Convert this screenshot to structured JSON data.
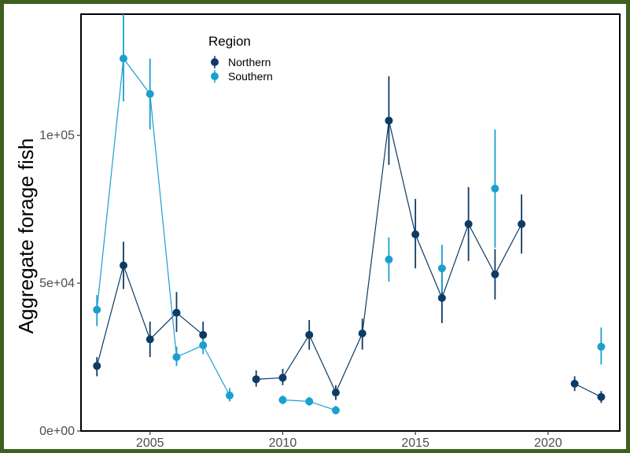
{
  "chart_data": {
    "type": "line",
    "title": "",
    "xlabel": "",
    "ylabel": "Aggregate forage fish",
    "xlim": [
      2002.4,
      2022.7
    ],
    "ylim": [
      0,
      141000
    ],
    "x_ticks": [
      2005,
      2010,
      2015,
      2020
    ],
    "x_tick_labels": [
      "2005",
      "2010",
      "2015",
      "2020"
    ],
    "y_ticks": [
      0,
      50000,
      100000
    ],
    "y_tick_labels": [
      "0e+00",
      "5e+04",
      "1e+05"
    ],
    "grid": false,
    "legend": {
      "title": "Region",
      "position": "top-left"
    },
    "series": [
      {
        "name": "Northern",
        "color": "#0d3b66",
        "points": [
          {
            "x": 2003,
            "y": 22000,
            "lo": 18500,
            "hi": 25000
          },
          {
            "x": 2004,
            "y": 56000,
            "lo": 48000,
            "hi": 64000
          },
          {
            "x": 2005,
            "y": 31000,
            "lo": 25000,
            "hi": 37000
          },
          {
            "x": 2006,
            "y": 40000,
            "lo": 33500,
            "hi": 47000
          },
          {
            "x": 2007,
            "y": 32500,
            "lo": 28500,
            "hi": 37000
          },
          {
            "x": 2009,
            "y": 17500,
            "lo": 15000,
            "hi": 20500
          },
          {
            "x": 2010,
            "y": 18000,
            "lo": 15500,
            "hi": 21000
          },
          {
            "x": 2011,
            "y": 32500,
            "lo": 27500,
            "hi": 37500
          },
          {
            "x": 2012,
            "y": 13000,
            "lo": 10500,
            "hi": 15500
          },
          {
            "x": 2013,
            "y": 33000,
            "lo": 27500,
            "hi": 38000
          },
          {
            "x": 2014,
            "y": 105000,
            "lo": 90000,
            "hi": 120000
          },
          {
            "x": 2015,
            "y": 66500,
            "lo": 55000,
            "hi": 78500
          },
          {
            "x": 2016,
            "y": 45000,
            "lo": 36500,
            "hi": 54000
          },
          {
            "x": 2017,
            "y": 70000,
            "lo": 57500,
            "hi": 82500
          },
          {
            "x": 2018,
            "y": 53000,
            "lo": 44500,
            "hi": 61500
          },
          {
            "x": 2019,
            "y": 70000,
            "lo": 60000,
            "hi": 80000
          },
          {
            "x": 2021,
            "y": 16000,
            "lo": 13500,
            "hi": 18500
          },
          {
            "x": 2022,
            "y": 11500,
            "lo": 9500,
            "hi": 13500
          }
        ]
      },
      {
        "name": "Southern",
        "color": "#1a9fd0",
        "points": [
          {
            "x": 2003,
            "y": 41000,
            "lo": 35500,
            "hi": 46000
          },
          {
            "x": 2004,
            "y": 126000,
            "lo": 111500,
            "hi": 141000
          },
          {
            "x": 2005,
            "y": 114000,
            "lo": 102000,
            "hi": 126000
          },
          {
            "x": 2006,
            "y": 25000,
            "lo": 22000,
            "hi": 28500
          },
          {
            "x": 2007,
            "y": 29000,
            "lo": 26000,
            "hi": 32000
          },
          {
            "x": 2008,
            "y": 12000,
            "lo": 10000,
            "hi": 14500
          },
          {
            "x": 2010,
            "y": 10500,
            "lo": 9000,
            "hi": 12000
          },
          {
            "x": 2011,
            "y": 10000,
            "lo": 8500,
            "hi": 11500
          },
          {
            "x": 2012,
            "y": 7000,
            "lo": 6000,
            "hi": 8500
          },
          {
            "x": 2014,
            "y": 58000,
            "lo": 50500,
            "hi": 65500
          },
          {
            "x": 2016,
            "y": 55000,
            "lo": 47000,
            "hi": 63000
          },
          {
            "x": 2018,
            "y": 82000,
            "lo": 62000,
            "hi": 102000
          },
          {
            "x": 2022,
            "y": 28500,
            "lo": 22500,
            "hi": 35000
          }
        ]
      }
    ]
  }
}
